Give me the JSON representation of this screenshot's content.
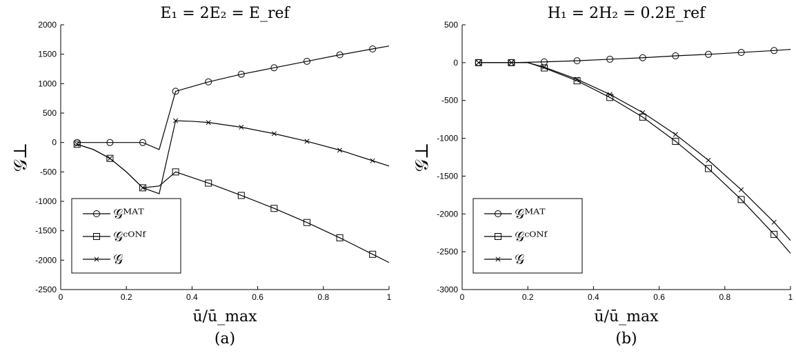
{
  "chart_data": [
    {
      "type": "line",
      "title": "E₁ = 2E₂ = E_ref",
      "xlabel": "ū/ū_max",
      "ylabel": "𝒢⊥",
      "caption": "(a)",
      "xlim": [
        0,
        1
      ],
      "ylim": [
        -2500,
        2000
      ],
      "xticks": [
        0,
        0.2,
        0.4,
        0.6,
        0.8,
        1
      ],
      "xtick_labels": [
        "0",
        "0.2",
        "0.4",
        "0.6",
        "0.8",
        "1"
      ],
      "yticks": [
        -2500,
        -2000,
        -1500,
        -1000,
        -500,
        0,
        500,
        1000,
        1500,
        2000
      ],
      "ytick_labels": [
        "-2500",
        "-2000",
        "-1500",
        "-1000",
        "-500",
        "0",
        "500",
        "1000",
        "1500",
        "2000"
      ],
      "grid": false,
      "legend_position": "bottom-left",
      "series": [
        {
          "name": "𝒢ᴹᴬᵀ",
          "marker": "circle",
          "line": [
            [
              0.05,
              0
            ],
            [
              0.15,
              0
            ],
            [
              0.25,
              0
            ],
            [
              0.3,
              -120
            ],
            [
              0.35,
              870
            ],
            [
              0.45,
              1030
            ],
            [
              0.55,
              1160
            ],
            [
              0.65,
              1270
            ],
            [
              0.75,
              1380
            ],
            [
              0.85,
              1490
            ],
            [
              0.95,
              1590
            ],
            [
              1.0,
              1640
            ]
          ],
          "markers": [
            [
              0.05,
              0
            ],
            [
              0.15,
              0
            ],
            [
              0.25,
              0
            ],
            [
              0.35,
              870
            ],
            [
              0.45,
              1030
            ],
            [
              0.55,
              1160
            ],
            [
              0.65,
              1270
            ],
            [
              0.75,
              1380
            ],
            [
              0.85,
              1490
            ],
            [
              0.95,
              1590
            ]
          ]
        },
        {
          "name": "𝒢ᶜᴼᴺᶠ",
          "marker": "square",
          "line": [
            [
              0.05,
              -30
            ],
            [
              0.1,
              -120
            ],
            [
              0.15,
              -270
            ],
            [
              0.2,
              -500
            ],
            [
              0.25,
              -770
            ],
            [
              0.3,
              -740
            ],
            [
              0.35,
              -500
            ],
            [
              0.45,
              -690
            ],
            [
              0.55,
              -900
            ],
            [
              0.65,
              -1120
            ],
            [
              0.75,
              -1360
            ],
            [
              0.85,
              -1620
            ],
            [
              0.95,
              -1900
            ],
            [
              1.0,
              -2040
            ]
          ],
          "markers": [
            [
              0.05,
              -30
            ],
            [
              0.15,
              -270
            ],
            [
              0.25,
              -770
            ],
            [
              0.35,
              -500
            ],
            [
              0.45,
              -690
            ],
            [
              0.55,
              -900
            ],
            [
              0.65,
              -1120
            ],
            [
              0.75,
              -1360
            ],
            [
              0.85,
              -1620
            ],
            [
              0.95,
              -1900
            ]
          ]
        },
        {
          "name": "𝒢",
          "marker": "cross",
          "line": [
            [
              0.05,
              -30
            ],
            [
              0.1,
              -120
            ],
            [
              0.15,
              -270
            ],
            [
              0.2,
              -500
            ],
            [
              0.25,
              -770
            ],
            [
              0.3,
              -870
            ],
            [
              0.35,
              370
            ],
            [
              0.4,
              360
            ],
            [
              0.45,
              340
            ],
            [
              0.55,
              260
            ],
            [
              0.65,
              150
            ],
            [
              0.75,
              20
            ],
            [
              0.85,
              -130
            ],
            [
              0.95,
              -310
            ],
            [
              1.0,
              -400
            ]
          ],
          "markers": [
            [
              0.05,
              -30
            ],
            [
              0.15,
              -270
            ],
            [
              0.25,
              -770
            ],
            [
              0.35,
              370
            ],
            [
              0.45,
              340
            ],
            [
              0.55,
              260
            ],
            [
              0.65,
              150
            ],
            [
              0.75,
              20
            ],
            [
              0.85,
              -130
            ],
            [
              0.95,
              -310
            ]
          ]
        }
      ]
    },
    {
      "type": "line",
      "title": "H₁ = 2H₂ = 0.2E_ref",
      "xlabel": "ū/ū_max",
      "ylabel": "𝒢⊥",
      "caption": "(b)",
      "xlim": [
        0,
        1
      ],
      "ylim": [
        -3000,
        500
      ],
      "xticks": [
        0,
        0.2,
        0.4,
        0.6,
        0.8,
        1
      ],
      "xtick_labels": [
        "0",
        "0.2",
        "0.4",
        "0.6",
        "0.8",
        "1"
      ],
      "yticks": [
        -3000,
        -2500,
        -2000,
        -1500,
        -1000,
        -500,
        0,
        500
      ],
      "ytick_labels": [
        "-3000",
        "-2500",
        "-2000",
        "-1500",
        "-1000",
        "-500",
        "0",
        "500"
      ],
      "grid": false,
      "legend_position": "bottom-left",
      "series": [
        {
          "name": "𝒢ᴹᴬᵀ",
          "marker": "circle",
          "line": [
            [
              0.05,
              0
            ],
            [
              0.15,
              0
            ],
            [
              0.25,
              10
            ],
            [
              0.35,
              25
            ],
            [
              0.45,
              45
            ],
            [
              0.55,
              65
            ],
            [
              0.65,
              90
            ],
            [
              0.75,
              110
            ],
            [
              0.85,
              135
            ],
            [
              0.95,
              160
            ],
            [
              1.0,
              175
            ]
          ],
          "markers": [
            [
              0.05,
              0
            ],
            [
              0.15,
              0
            ],
            [
              0.25,
              10
            ],
            [
              0.35,
              25
            ],
            [
              0.45,
              45
            ],
            [
              0.55,
              65
            ],
            [
              0.65,
              90
            ],
            [
              0.75,
              110
            ],
            [
              0.85,
              135
            ],
            [
              0.95,
              160
            ]
          ]
        },
        {
          "name": "𝒢ᶜᴼᴺᶠ",
          "marker": "square",
          "line": [
            [
              0.05,
              0
            ],
            [
              0.15,
              0
            ],
            [
              0.2,
              0
            ],
            [
              0.25,
              -70
            ],
            [
              0.35,
              -240
            ],
            [
              0.45,
              -460
            ],
            [
              0.55,
              -720
            ],
            [
              0.65,
              -1040
            ],
            [
              0.75,
              -1400
            ],
            [
              0.85,
              -1810
            ],
            [
              0.95,
              -2270
            ],
            [
              1.0,
              -2520
            ]
          ],
          "markers": [
            [
              0.05,
              0
            ],
            [
              0.15,
              0
            ],
            [
              0.25,
              -70
            ],
            [
              0.35,
              -240
            ],
            [
              0.45,
              -460
            ],
            [
              0.55,
              -720
            ],
            [
              0.65,
              -1040
            ],
            [
              0.75,
              -1400
            ],
            [
              0.85,
              -1810
            ],
            [
              0.95,
              -2270
            ]
          ]
        },
        {
          "name": "𝒢",
          "marker": "cross",
          "line": [
            [
              0.05,
              0
            ],
            [
              0.15,
              0
            ],
            [
              0.2,
              0
            ],
            [
              0.25,
              -60
            ],
            [
              0.35,
              -220
            ],
            [
              0.45,
              -420
            ],
            [
              0.55,
              -660
            ],
            [
              0.65,
              -950
            ],
            [
              0.75,
              -1290
            ],
            [
              0.85,
              -1680
            ],
            [
              0.95,
              -2110
            ],
            [
              1.0,
              -2350
            ]
          ],
          "markers": [
            [
              0.05,
              0
            ],
            [
              0.15,
              0
            ],
            [
              0.25,
              -60
            ],
            [
              0.35,
              -220
            ],
            [
              0.45,
              -420
            ],
            [
              0.55,
              -660
            ],
            [
              0.65,
              -950
            ],
            [
              0.75,
              -1290
            ],
            [
              0.85,
              -1680
            ],
            [
              0.95,
              -2110
            ]
          ]
        }
      ]
    }
  ]
}
